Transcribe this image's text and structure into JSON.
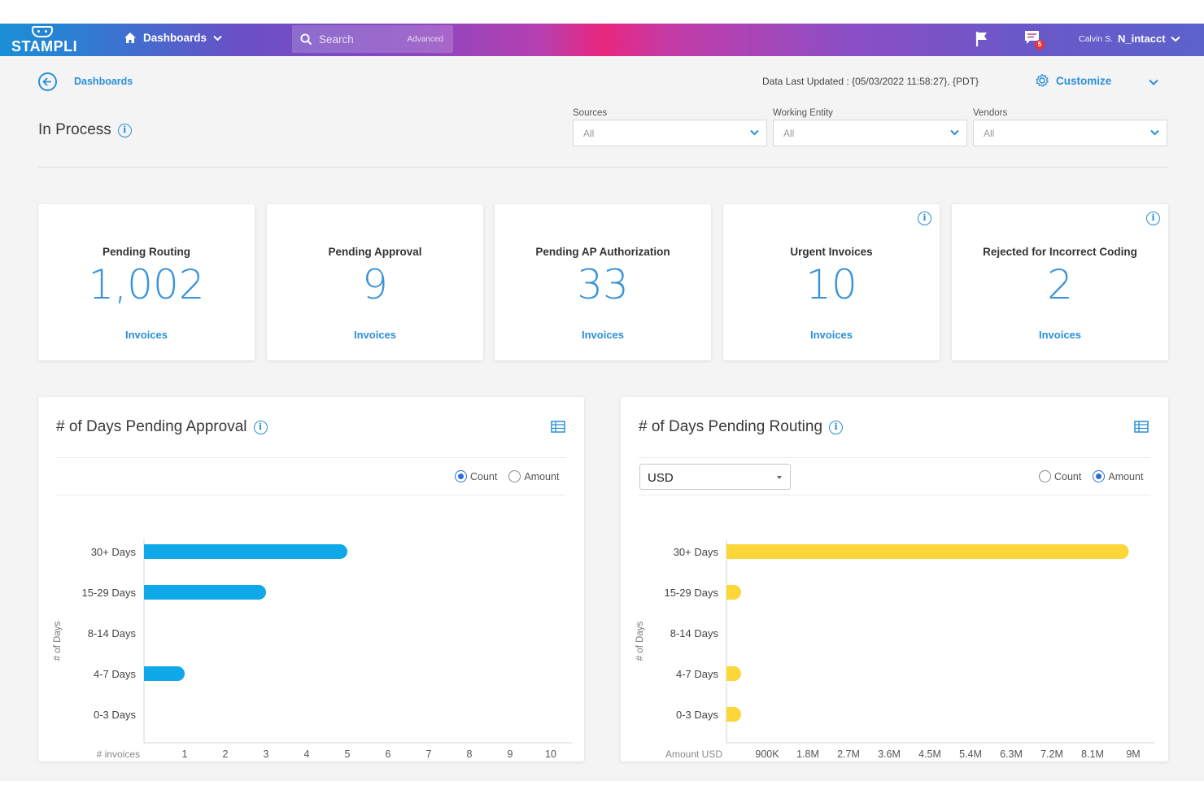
{
  "app": {
    "logo": "STAMPLI"
  },
  "nav": {
    "dashboards_label": "Dashboards"
  },
  "search": {
    "placeholder": "Search",
    "advanced": "Advanced"
  },
  "notifications": {
    "chat_badge": "5"
  },
  "user": {
    "name": "Calvin S.",
    "entity": "N_intacct"
  },
  "breadcrumb": {
    "label": "Dashboards"
  },
  "header": {
    "data_updated": "Data Last Updated : {05/03/2022 11:58:27}, {PDT}",
    "customize_label": "Customize"
  },
  "page": {
    "title": "In Process"
  },
  "filters": [
    {
      "label": "Sources",
      "value": "All"
    },
    {
      "label": "Working Entity",
      "value": "All"
    },
    {
      "label": "Vendors",
      "value": "All"
    }
  ],
  "cards": [
    {
      "title": "Pending Routing",
      "value": "1,002",
      "sub": "Invoices",
      "info": false
    },
    {
      "title": "Pending Approval",
      "value": "9",
      "sub": "Invoices",
      "info": false
    },
    {
      "title": "Pending AP Authorization",
      "value": "33",
      "sub": "Invoices",
      "info": false
    },
    {
      "title": "Urgent Invoices",
      "value": "10",
      "sub": "Invoices",
      "info": true
    },
    {
      "title": "Rejected for Incorrect Coding",
      "value": "2",
      "sub": "Invoices",
      "info": true
    }
  ],
  "panels": {
    "approval": {
      "title": "# of Days Pending Approval",
      "radio_count": "Count",
      "radio_amount": "Amount",
      "selected": "count"
    },
    "routing": {
      "title": "# of Days Pending Routing",
      "currency": "USD",
      "radio_count": "Count",
      "radio_amount": "Amount",
      "selected": "amount"
    }
  },
  "colors": {
    "accent": "#2a8fd8",
    "approval_bar": "#0fa8e8",
    "routing_bar": "#fdd63a"
  },
  "chart_data": [
    {
      "type": "bar",
      "orientation": "horizontal",
      "title": "# of Days Pending Approval",
      "categories": [
        "30+ Days",
        "15-29 Days",
        "8-14 Days",
        "4-7 Days",
        "0-3 Days"
      ],
      "values": [
        5,
        3,
        0,
        1,
        0
      ],
      "xlabel": "# invoices",
      "ylabel": "# of Days",
      "xlim": [
        0,
        10
      ],
      "xticks": [
        "1",
        "2",
        "3",
        "4",
        "5",
        "6",
        "7",
        "8",
        "9",
        "10"
      ],
      "grid": false
    },
    {
      "type": "bar",
      "orientation": "horizontal",
      "title": "# of Days Pending Routing",
      "categories": [
        "30+ Days",
        "15-29 Days",
        "8-14 Days",
        "4-7 Days",
        "0-3 Days"
      ],
      "values": [
        8900000,
        150000,
        0,
        150000,
        150000
      ],
      "xlabel": "Amount USD",
      "ylabel": "# of Days",
      "xlim": [
        0,
        9000000
      ],
      "xticks": [
        "900K",
        "1.8M",
        "2.7M",
        "3.6M",
        "4.5M",
        "5.4M",
        "6.3M",
        "7.2M",
        "8.1M",
        "9M"
      ],
      "grid": false
    }
  ]
}
